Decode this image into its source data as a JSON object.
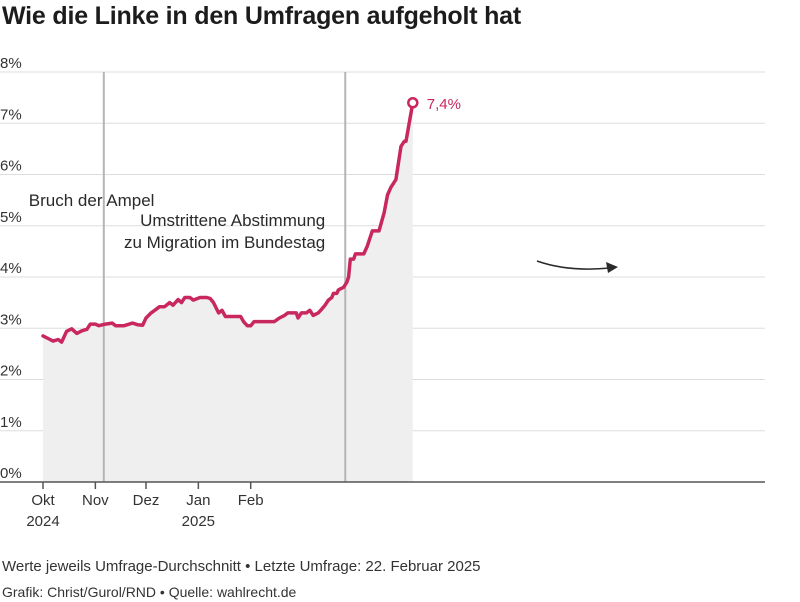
{
  "title": "Wie die Linke in den Umfragen aufgeholt hat",
  "footer": {
    "note": "Werte jeweils Umfrage-Durchschnitt • Letzte Umfrage: 22. Februar 2025",
    "source": "Grafik: Christ/Gurol/RND • Quelle: wahlrecht.de"
  },
  "colors": {
    "line": "#c8285f",
    "area": "#efefef",
    "grid": "#dddddd",
    "event": "#b5b5b5"
  },
  "chart_data": {
    "type": "area",
    "ylim": [
      0,
      8
    ],
    "y_ticks": [
      {
        "value": 0,
        "label": "0%"
      },
      {
        "value": 1,
        "label": "1%"
      },
      {
        "value": 2,
        "label": "2%"
      },
      {
        "value": 3,
        "label": "3%"
      },
      {
        "value": 4,
        "label": "4%"
      },
      {
        "value": 5,
        "label": "5%"
      },
      {
        "value": 6,
        "label": "6%"
      },
      {
        "value": 7,
        "label": "7%"
      },
      {
        "value": 8,
        "label": "8%"
      }
    ],
    "x_ticks": [
      {
        "date": "2024-10-01",
        "label": "Okt",
        "year": "2024"
      },
      {
        "date": "2024-11-01",
        "label": "Nov",
        "year": ""
      },
      {
        "date": "2024-12-01",
        "label": "Dez",
        "year": ""
      },
      {
        "date": "2025-01-01",
        "label": "Jan",
        "year": "2025"
      },
      {
        "date": "2025-02-01",
        "label": "Feb",
        "year": ""
      }
    ],
    "series": [
      {
        "points": [
          [
            "2024-10-01",
            2.85
          ],
          [
            "2024-10-04",
            2.8
          ],
          [
            "2024-10-07",
            2.75
          ],
          [
            "2024-10-10",
            2.78
          ],
          [
            "2024-10-12",
            2.73
          ],
          [
            "2024-10-15",
            2.94
          ],
          [
            "2024-10-18",
            2.99
          ],
          [
            "2024-10-21",
            2.9
          ],
          [
            "2024-10-24",
            2.95
          ],
          [
            "2024-10-27",
            2.98
          ],
          [
            "2024-10-29",
            3.08
          ],
          [
            "2024-11-01",
            3.08
          ],
          [
            "2024-11-03",
            3.05
          ],
          [
            "2024-11-07",
            3.08
          ],
          [
            "2024-11-11",
            3.1
          ],
          [
            "2024-11-13",
            3.05
          ],
          [
            "2024-11-18",
            3.05
          ],
          [
            "2024-11-23",
            3.1
          ],
          [
            "2024-11-26",
            3.07
          ],
          [
            "2024-11-29",
            3.06
          ],
          [
            "2024-12-01",
            3.2
          ],
          [
            "2024-12-04",
            3.3
          ],
          [
            "2024-12-07",
            3.37
          ],
          [
            "2024-12-09",
            3.42
          ],
          [
            "2024-12-12",
            3.42
          ],
          [
            "2024-12-15",
            3.5
          ],
          [
            "2024-12-17",
            3.45
          ],
          [
            "2024-12-20",
            3.56
          ],
          [
            "2024-12-22",
            3.5
          ],
          [
            "2024-12-24",
            3.6
          ],
          [
            "2024-12-27",
            3.6
          ],
          [
            "2024-12-29",
            3.55
          ],
          [
            "2025-01-02",
            3.6
          ],
          [
            "2025-01-06",
            3.6
          ],
          [
            "2025-01-08",
            3.58
          ],
          [
            "2025-01-10",
            3.5
          ],
          [
            "2025-01-13",
            3.3
          ],
          [
            "2025-01-15",
            3.35
          ],
          [
            "2025-01-17",
            3.23
          ],
          [
            "2025-01-20",
            3.23
          ],
          [
            "2025-01-23",
            3.23
          ],
          [
            "2025-01-26",
            3.23
          ],
          [
            "2025-01-28",
            3.12
          ],
          [
            "2025-01-30",
            3.05
          ],
          [
            "2025-02-01",
            3.05
          ],
          [
            "2025-02-03",
            3.13
          ],
          [
            "2025-02-06",
            3.13
          ],
          [
            "2025-02-09",
            3.13
          ],
          [
            "2025-02-12",
            3.13
          ],
          [
            "2025-02-15",
            3.13
          ],
          [
            "2025-02-18",
            3.2
          ],
          [
            "2025-02-21",
            3.25
          ],
          [
            "2025-02-23",
            3.3
          ],
          [
            "2025-02-26",
            3.3
          ],
          [
            "2025-02-28",
            3.3
          ],
          [
            "2025-03-01",
            3.2
          ],
          [
            "2025-03-03",
            3.3
          ],
          [
            "2025-03-06",
            3.3
          ],
          [
            "2025-03-08",
            3.35
          ],
          [
            "2025-03-10",
            3.25
          ],
          [
            "2025-03-13",
            3.3
          ],
          [
            "2025-03-15",
            3.37
          ],
          [
            "2025-03-17",
            3.45
          ],
          [
            "2025-03-19",
            3.55
          ],
          [
            "2025-03-21",
            3.6
          ],
          [
            "2025-03-22",
            3.68
          ],
          [
            "2025-03-24",
            3.68
          ],
          [
            "2025-03-25",
            3.75
          ],
          [
            "2025-03-28",
            3.8
          ],
          [
            "2025-03-30",
            3.9
          ],
          [
            "2025-03-31",
            4.0
          ],
          [
            "2025-04-01",
            4.35
          ],
          [
            "2025-04-03",
            4.35
          ],
          [
            "2025-04-04",
            4.45
          ],
          [
            "2025-04-07",
            4.45
          ],
          [
            "2025-04-09",
            4.45
          ],
          [
            "2025-04-11",
            4.6
          ],
          [
            "2025-04-14",
            4.9
          ],
          [
            "2025-04-18",
            4.9
          ],
          [
            "2025-04-21",
            5.25
          ],
          [
            "2025-04-23",
            5.6
          ],
          [
            "2025-04-25",
            5.75
          ],
          [
            "2025-04-28",
            5.9
          ],
          [
            "2025-05-01",
            6.55
          ],
          [
            "2025-05-03",
            6.65
          ],
          [
            "2025-05-04",
            6.65
          ],
          [
            "2025-05-08",
            7.4
          ]
        ]
      }
    ],
    "last_value_label": "7,4%",
    "events": [
      {
        "date": "2024-11-06",
        "label": "Bruch der Ampel"
      },
      {
        "date": "2025-03-29",
        "label_lines": [
          "Umstrittene Abstimmung",
          "zu Migration im Bundestag"
        ]
      }
    ]
  }
}
